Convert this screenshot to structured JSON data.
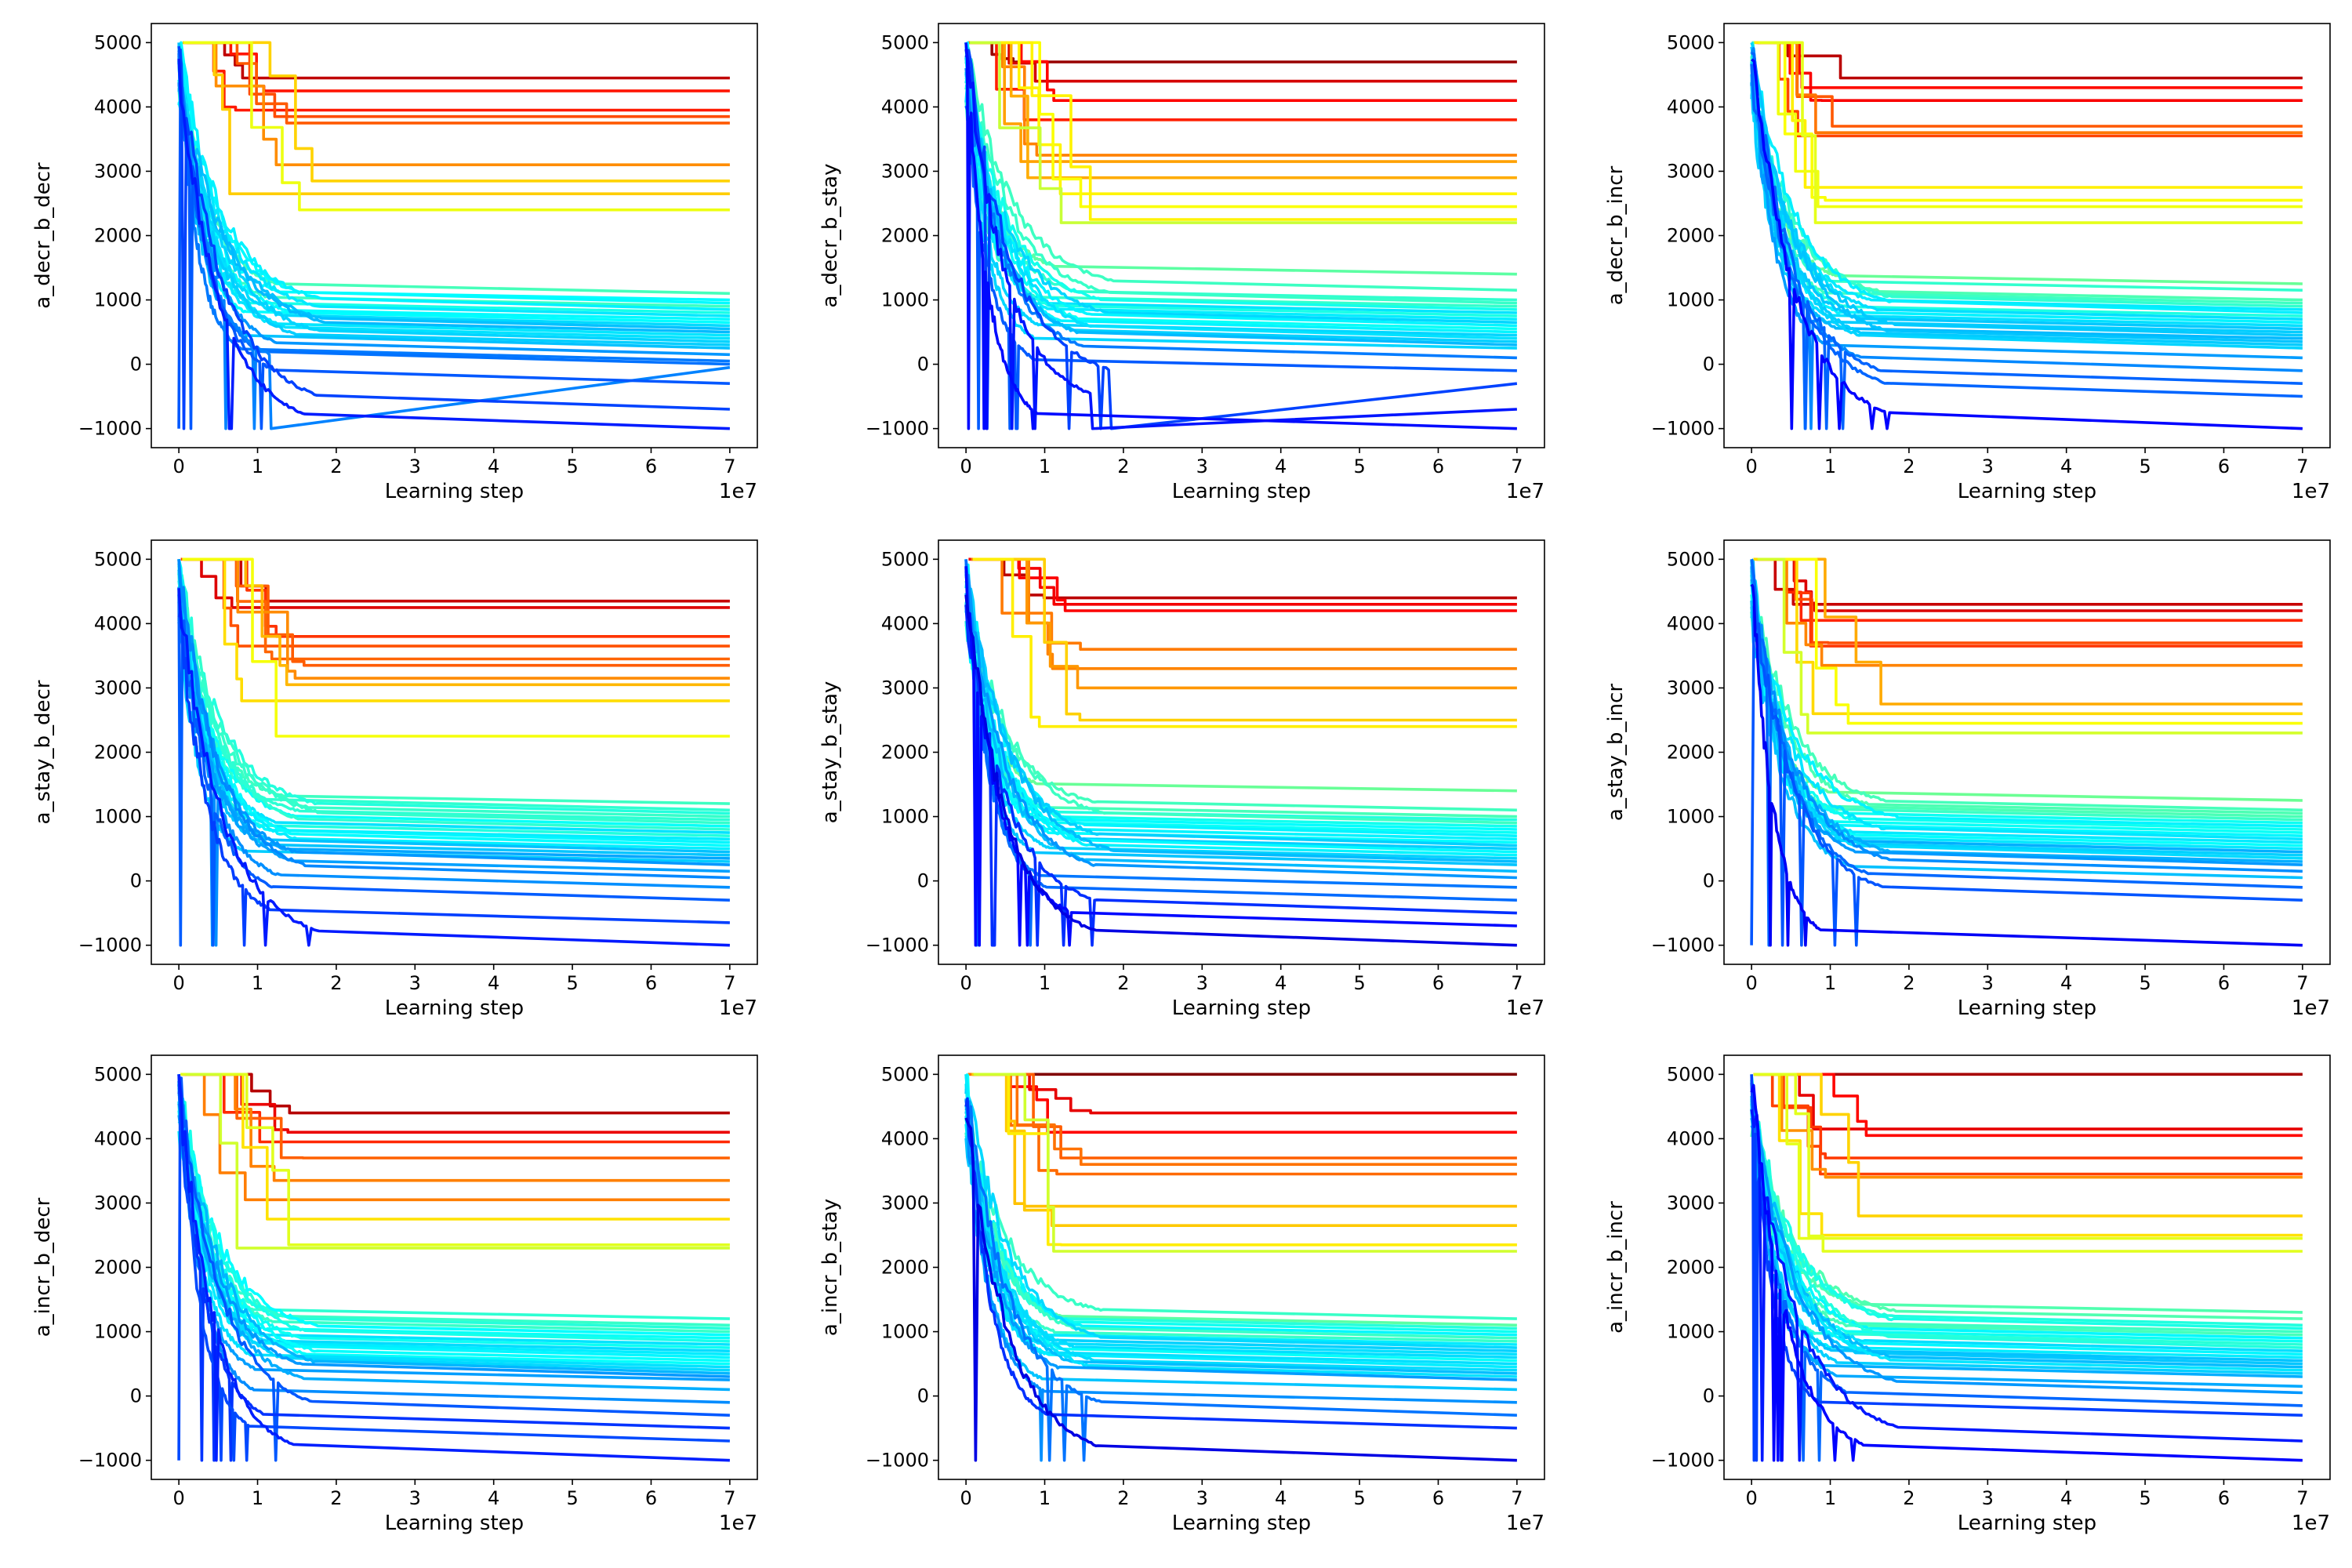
{
  "figure": {
    "panels": [
      {
        "ylabel": "a_decr_b_decr",
        "xlabel": "Learning step",
        "offset_label": "1e7"
      },
      {
        "ylabel": "a_decr_b_stay",
        "xlabel": "Learning step",
        "offset_label": "1e7"
      },
      {
        "ylabel": "a_decr_b_incr",
        "xlabel": "Learning step",
        "offset_label": "1e7"
      },
      {
        "ylabel": "a_stay_b_decr",
        "xlabel": "Learning step",
        "offset_label": "1e7"
      },
      {
        "ylabel": "a_stay_b_stay",
        "xlabel": "Learning step",
        "offset_label": "1e7"
      },
      {
        "ylabel": "a_stay_b_incr",
        "xlabel": "Learning step",
        "offset_label": "1e7"
      },
      {
        "ylabel": "a_incr_b_decr",
        "xlabel": "Learning step",
        "offset_label": "1e7"
      },
      {
        "ylabel": "a_incr_b_stay",
        "xlabel": "Learning step",
        "offset_label": "1e7"
      },
      {
        "ylabel": "a_incr_b_incr",
        "xlabel": "Learning step",
        "offset_label": "1e7"
      }
    ]
  },
  "chart_data": [
    {
      "type": "line",
      "ylabel": "a_decr_b_decr",
      "xlabel": "Learning step",
      "x_offset_label": "1e7",
      "xlim": [
        0,
        7
      ],
      "ylim": [
        -1000,
        5000
      ],
      "x_ticks": [
        0,
        1,
        2,
        3,
        4,
        5,
        6,
        7
      ],
      "y_ticks": [
        -1000,
        0,
        1000,
        2000,
        3000,
        4000,
        5000
      ],
      "final_levels": [
        4450,
        4250,
        3950,
        3850,
        3750,
        3100,
        2850,
        2650,
        2400,
        1100,
        1000,
        950,
        900,
        850,
        800,
        750,
        700,
        650,
        600,
        550,
        500,
        450,
        400,
        350,
        300,
        250,
        150,
        50,
        0,
        -50,
        -300,
        -700,
        -1000
      ],
      "colormap": "jet",
      "grid": false,
      "legend": "none"
    },
    {
      "type": "line",
      "ylabel": "a_decr_b_stay",
      "xlabel": "Learning step",
      "x_offset_label": "1e7",
      "xlim": [
        0,
        7
      ],
      "ylim": [
        -1000,
        5000
      ],
      "x_ticks": [
        0,
        1,
        2,
        3,
        4,
        5,
        6,
        7
      ],
      "y_ticks": [
        -1000,
        0,
        1000,
        2000,
        3000,
        4000,
        5000
      ],
      "final_levels": [
        4700,
        4400,
        4100,
        3800,
        3250,
        3150,
        2900,
        2650,
        2450,
        2250,
        2200,
        1400,
        1150,
        1000,
        950,
        900,
        850,
        800,
        750,
        700,
        650,
        600,
        550,
        500,
        450,
        400,
        350,
        300,
        250,
        100,
        -100,
        -300,
        -700,
        -1000
      ],
      "colormap": "jet",
      "grid": false,
      "legend": "none"
    },
    {
      "type": "line",
      "ylabel": "a_decr_b_incr",
      "xlabel": "Learning step",
      "x_offset_label": "1e7",
      "xlim": [
        0,
        7
      ],
      "ylim": [
        -1000,
        5000
      ],
      "x_ticks": [
        0,
        1,
        2,
        3,
        4,
        5,
        6,
        7
      ],
      "y_ticks": [
        -1000,
        0,
        1000,
        2000,
        3000,
        4000,
        5000
      ],
      "final_levels": [
        4450,
        4300,
        4100,
        3700,
        3600,
        3550,
        2750,
        2550,
        2450,
        2200,
        1250,
        1150,
        1000,
        950,
        900,
        850,
        800,
        750,
        700,
        650,
        600,
        550,
        500,
        450,
        400,
        350,
        300,
        250,
        100,
        -100,
        -300,
        -500,
        -1000
      ],
      "colormap": "jet",
      "grid": false,
      "legend": "none"
    },
    {
      "type": "line",
      "ylabel": "a_stay_b_decr",
      "xlabel": "Learning step",
      "x_offset_label": "1e7",
      "xlim": [
        0,
        7
      ],
      "ylim": [
        -1000,
        5000
      ],
      "x_ticks": [
        0,
        1,
        2,
        3,
        4,
        5,
        6,
        7
      ],
      "y_ticks": [
        -1000,
        0,
        1000,
        2000,
        3000,
        4000,
        5000
      ],
      "final_levels": [
        4350,
        4250,
        3800,
        3650,
        3450,
        3350,
        3150,
        3050,
        2800,
        2250,
        1200,
        1100,
        1050,
        1000,
        950,
        900,
        850,
        800,
        750,
        700,
        650,
        600,
        550,
        500,
        450,
        400,
        350,
        300,
        250,
        150,
        50,
        -100,
        -300,
        -650,
        -1000
      ],
      "colormap": "jet",
      "grid": false,
      "legend": "none"
    },
    {
      "type": "line",
      "ylabel": "a_stay_b_stay",
      "xlabel": "Learning step",
      "x_offset_label": "1e7",
      "xlim": [
        0,
        7
      ],
      "ylim": [
        -1000,
        5000
      ],
      "x_ticks": [
        0,
        1,
        2,
        3,
        4,
        5,
        6,
        7
      ],
      "y_ticks": [
        -1000,
        0,
        1000,
        2000,
        3000,
        4000,
        5000
      ],
      "final_levels": [
        4400,
        4300,
        4200,
        3600,
        3300,
        3000,
        2500,
        2400,
        1400,
        1100,
        1000,
        950,
        900,
        850,
        800,
        750,
        700,
        650,
        600,
        550,
        500,
        450,
        400,
        350,
        300,
        250,
        150,
        50,
        -100,
        -300,
        -500,
        -700,
        -1000
      ],
      "colormap": "jet",
      "grid": false,
      "legend": "none"
    },
    {
      "type": "line",
      "ylabel": "a_stay_b_incr",
      "xlabel": "Learning step",
      "x_offset_label": "1e7",
      "xlim": [
        0,
        7
      ],
      "ylim": [
        -1000,
        5000
      ],
      "x_ticks": [
        0,
        1,
        2,
        3,
        4,
        5,
        6,
        7
      ],
      "y_ticks": [
        -1000,
        0,
        1000,
        2000,
        3000,
        4000,
        5000
      ],
      "final_levels": [
        4300,
        4200,
        4050,
        3700,
        3650,
        3350,
        2750,
        2600,
        2450,
        2300,
        1250,
        1100,
        1050,
        1000,
        950,
        900,
        850,
        800,
        750,
        700,
        650,
        600,
        550,
        500,
        450,
        400,
        350,
        300,
        250,
        150,
        50,
        -100,
        -300,
        -1000
      ],
      "colormap": "jet",
      "grid": false,
      "legend": "none"
    },
    {
      "type": "line",
      "ylabel": "a_incr_b_decr",
      "xlabel": "Learning step",
      "x_offset_label": "1e7",
      "xlim": [
        0,
        7
      ],
      "ylim": [
        -1000,
        5000
      ],
      "x_ticks": [
        0,
        1,
        2,
        3,
        4,
        5,
        6,
        7
      ],
      "y_ticks": [
        -1000,
        0,
        1000,
        2000,
        3000,
        4000,
        5000
      ],
      "final_levels": [
        4400,
        4100,
        3950,
        3700,
        3350,
        3050,
        2750,
        2350,
        2300,
        1200,
        1100,
        1050,
        1000,
        950,
        900,
        850,
        800,
        750,
        700,
        650,
        600,
        550,
        500,
        450,
        400,
        350,
        300,
        250,
        100,
        -100,
        -300,
        -500,
        -700,
        -1000
      ],
      "colormap": "jet",
      "grid": false,
      "legend": "none"
    },
    {
      "type": "line",
      "ylabel": "a_incr_b_stay",
      "xlabel": "Learning step",
      "x_offset_label": "1e7",
      "xlim": [
        0,
        7
      ],
      "ylim": [
        -1000,
        5000
      ],
      "x_ticks": [
        0,
        1,
        2,
        3,
        4,
        5,
        6,
        7
      ],
      "y_ticks": [
        -1000,
        0,
        1000,
        2000,
        3000,
        4000,
        5000
      ],
      "final_levels": [
        5000,
        4400,
        4100,
        3700,
        3600,
        3450,
        2950,
        2650,
        2350,
        2250,
        1200,
        1100,
        1050,
        1000,
        950,
        900,
        850,
        800,
        750,
        700,
        650,
        600,
        550,
        500,
        450,
        400,
        350,
        300,
        250,
        100,
        -100,
        -300,
        -500,
        -1000
      ],
      "colormap": "jet",
      "grid": false,
      "legend": "none"
    },
    {
      "type": "line",
      "ylabel": "a_incr_b_incr",
      "xlabel": "Learning step",
      "x_offset_label": "1e7",
      "xlim": [
        0,
        7
      ],
      "ylim": [
        -1000,
        5000
      ],
      "x_ticks": [
        0,
        1,
        2,
        3,
        4,
        5,
        6,
        7
      ],
      "y_ticks": [
        -1000,
        0,
        1000,
        2000,
        3000,
        4000,
        5000
      ],
      "final_levels": [
        5000,
        4150,
        4050,
        3700,
        3450,
        3400,
        2800,
        2500,
        2450,
        2250,
        1300,
        1200,
        1100,
        1050,
        1000,
        950,
        900,
        850,
        800,
        750,
        700,
        650,
        600,
        550,
        500,
        450,
        400,
        350,
        300,
        150,
        50,
        -150,
        -300,
        -700,
        -1000
      ],
      "colormap": "jet",
      "grid": false,
      "legend": "none"
    }
  ]
}
